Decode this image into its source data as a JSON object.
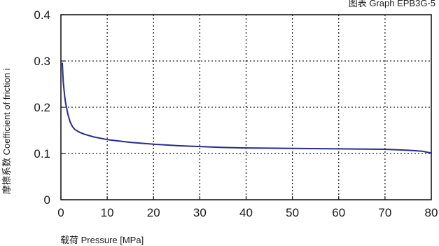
{
  "chart_data": {
    "type": "line",
    "title": "图表 Graph EPB3G-5",
    "xlabel": "载荷 Pressure [MPa]",
    "ylabel": "摩擦系数 Coefficient of friction i",
    "xlim": [
      0,
      80
    ],
    "ylim": [
      0,
      0.4
    ],
    "grid": true,
    "x_ticks": [
      0,
      10,
      20,
      30,
      40,
      50,
      60,
      70,
      80
    ],
    "y_ticks": [
      0,
      0.1,
      0.2,
      0.3,
      0.4
    ],
    "x_tick_labels": [
      "0",
      "10",
      "20",
      "30",
      "40",
      "50",
      "60",
      "70",
      "80"
    ],
    "y_tick_labels": [
      "0",
      "0.1",
      "0.2",
      "0.3",
      "0.4"
    ],
    "series": [
      {
        "color": "#2a2a8c",
        "x": [
          0.3,
          0.5,
          0.8,
          1.0,
          1.5,
          2.0,
          2.5,
          3.0,
          4.0,
          5.0,
          7.0,
          10,
          15,
          20,
          25,
          30,
          35,
          40,
          50,
          60,
          70,
          75,
          78,
          80
        ],
        "y": [
          0.295,
          0.255,
          0.225,
          0.21,
          0.185,
          0.168,
          0.158,
          0.152,
          0.146,
          0.142,
          0.136,
          0.13,
          0.124,
          0.12,
          0.117,
          0.115,
          0.113,
          0.112,
          0.111,
          0.11,
          0.109,
          0.107,
          0.105,
          0.101
        ]
      }
    ]
  }
}
